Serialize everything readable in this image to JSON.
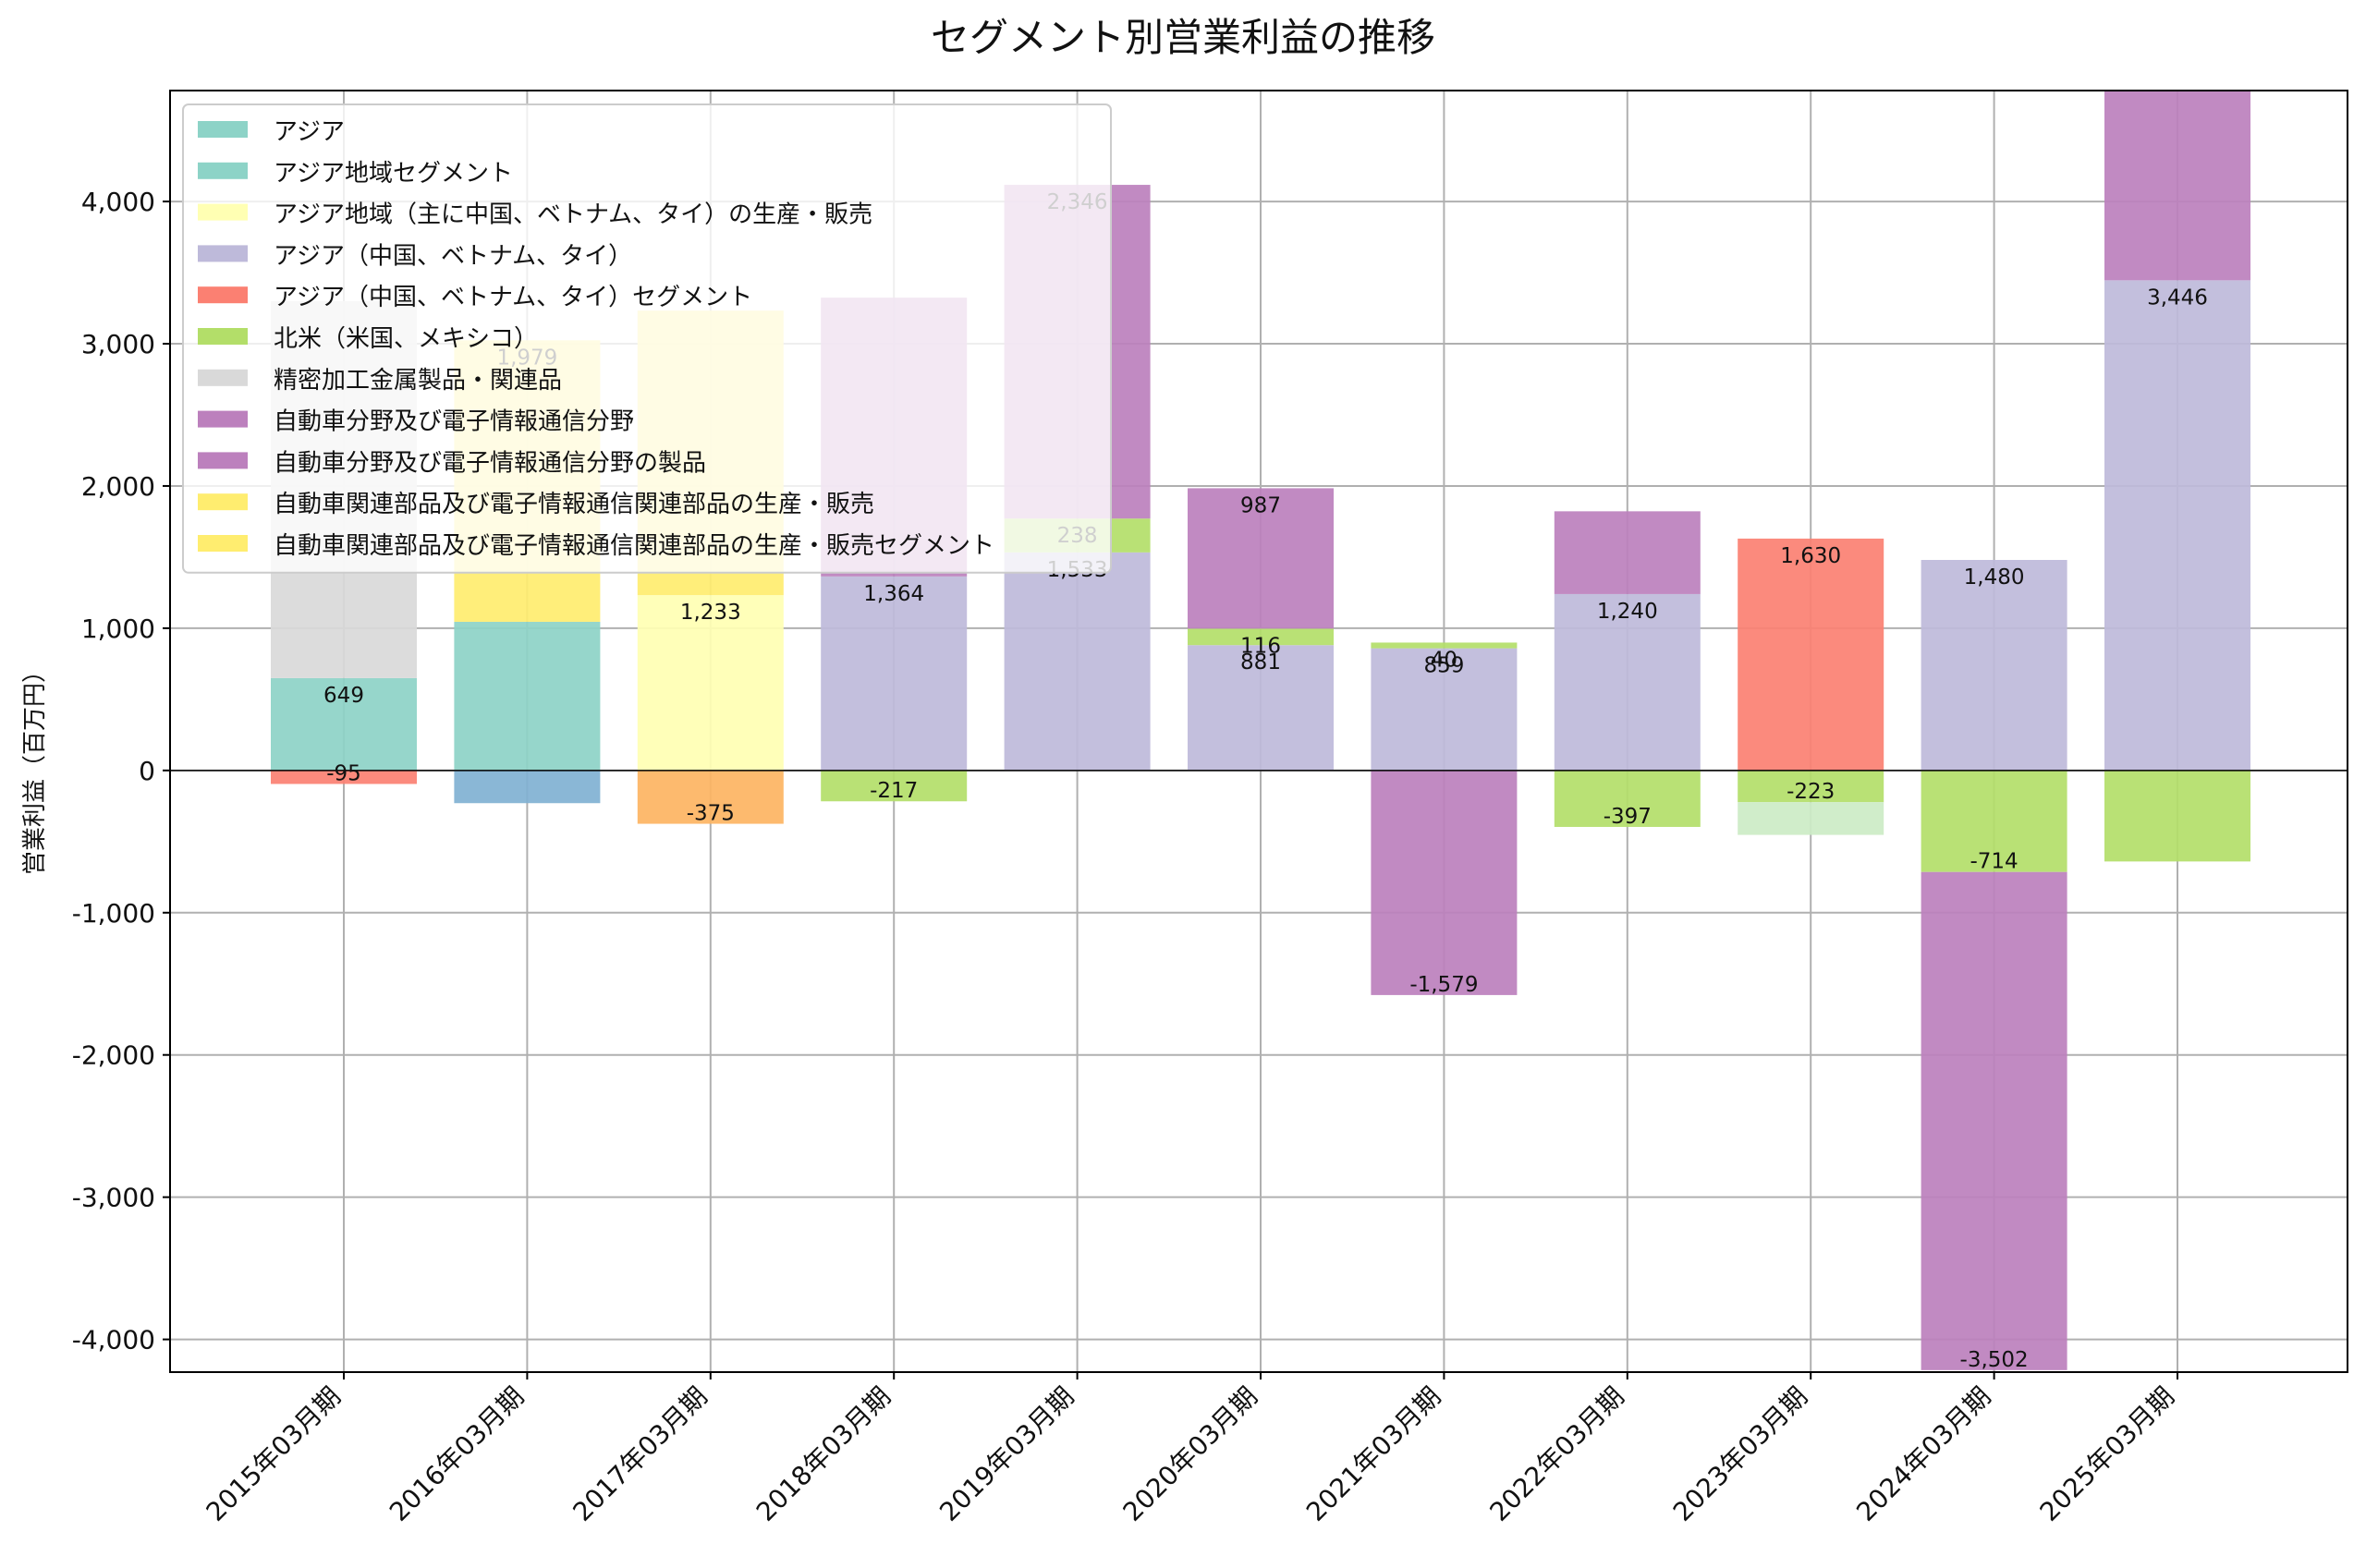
{
  "chart_data": {
    "type": "bar",
    "stacked": true,
    "title": "セグメント別営業利益の推移",
    "xlabel": "",
    "ylabel": "営業利益（百万円）",
    "ylim": [
      -4230,
      4780
    ],
    "yticks": [
      -4000,
      -3000,
      -2000,
      -1000,
      0,
      1000,
      2000,
      3000,
      4000
    ],
    "ytick_labels": [
      "-4,000",
      "-3,000",
      "-2,000",
      "-1,000",
      "0",
      "1,000",
      "2,000",
      "3,000",
      "4,000"
    ],
    "grid": true,
    "legend_position": "upper-left",
    "categories": [
      "2015年03月期",
      "2016年03月期",
      "2017年03月期",
      "2018年03月期",
      "2019年03月期",
      "2020年03月期",
      "2021年03月期",
      "2022年03月期",
      "2023年03月期",
      "2024年03月期",
      "2025年03月期"
    ],
    "series": [
      {
        "name": "アジア",
        "color": "#8dd3c7",
        "values": [
          649,
          null,
          null,
          null,
          null,
          null,
          null,
          null,
          null,
          null,
          null
        ]
      },
      {
        "name": "アジア地域セグメント",
        "color": "#8dd3c7",
        "values": [
          null,
          1045,
          null,
          null,
          null,
          null,
          null,
          null,
          null,
          null,
          null
        ]
      },
      {
        "name": "アジア地域（主に中国、ベトナム、タイ）の生産・販売",
        "color": "#ffffb3",
        "values": [
          null,
          null,
          1233,
          null,
          null,
          null,
          null,
          null,
          null,
          null,
          null
        ]
      },
      {
        "name": "アジア（中国、ベトナム、タイ）",
        "color": "#bebada",
        "values": [
          null,
          null,
          null,
          1364,
          1533,
          881,
          859,
          1240,
          null,
          1480,
          3446
        ]
      },
      {
        "name": "アジア（中国、ベトナム、タイ）セグメント",
        "color": "#fb8072",
        "values": [
          null,
          null,
          null,
          null,
          null,
          null,
          null,
          null,
          1630,
          null,
          null
        ]
      },
      {
        "name": "北米（米国、メキシコ）",
        "color": "#b3de69",
        "values": [
          null,
          null,
          null,
          -217,
          238,
          116,
          40,
          -397,
          -223,
          -714,
          -640
        ]
      },
      {
        "name": "精密加工金属製品・関連品",
        "color": "#d9d9d9",
        "values": [
          2650,
          null,
          null,
          null,
          null,
          null,
          null,
          null,
          null,
          null,
          null
        ]
      },
      {
        "name": "自動車分野及び電子情報通信分野",
        "color": "#bc80bd",
        "values": [
          null,
          null,
          null,
          null,
          2346,
          987,
          -1579,
          582,
          null,
          -3502,
          1340
        ]
      },
      {
        "name": "自動車分野及び電子情報通信分野の製品",
        "color": "#bc80bd",
        "values": [
          null,
          null,
          null,
          1960,
          null,
          null,
          null,
          null,
          null,
          null,
          null
        ]
      },
      {
        "name": "自動車関連部品及び電子情報通信関連部品の生産・販売",
        "color": "#ffed6f",
        "values": [
          null,
          null,
          2000,
          null,
          null,
          null,
          null,
          null,
          null,
          null,
          null
        ]
      },
      {
        "name": "自動車関連部品及び電子情報通信関連部品の生産・販売セグメント",
        "color": "#ffed6f",
        "values": [
          null,
          1979,
          null,
          null,
          null,
          null,
          null,
          null,
          null,
          null,
          null
        ]
      }
    ],
    "other_values": [
      -95,
      -230,
      -375,
      null,
      null,
      null,
      null,
      null,
      -230,
      null,
      null
    ],
    "other_colors": [
      "#fb8072",
      "#80b1d3",
      "#fdb462",
      "",
      "",
      "",
      "",
      "",
      "#ccebc5",
      "",
      ""
    ],
    "data_labels": [
      [
        "649",
        "-95"
      ],
      [
        "1,979"
      ],
      [
        "1,233",
        "-375"
      ],
      [
        "1,364",
        "-217"
      ],
      [
        "1,533",
        "238",
        "2,346"
      ],
      [
        "881",
        "116",
        "987"
      ],
      [
        "859",
        "40",
        "-1,579"
      ],
      [
        "1,240",
        "-397"
      ],
      [
        "1,630",
        "-223"
      ],
      [
        "1,480",
        "-714",
        "-3,502"
      ],
      [
        "3,446"
      ]
    ]
  }
}
